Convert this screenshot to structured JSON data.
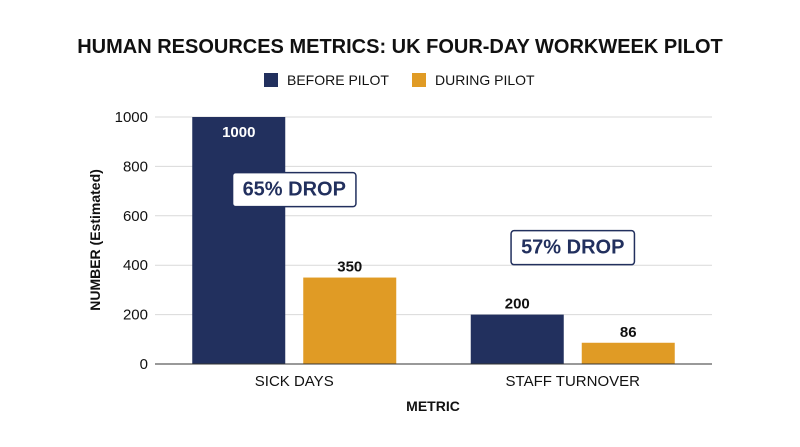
{
  "chart_data": {
    "type": "bar",
    "title": "HUMAN RESOURCES METRICS: UK FOUR-DAY WORKWEEK PILOT",
    "xlabel": "METRIC",
    "ylabel": "NUMBER (Estimated)",
    "categories": [
      "SICK DAYS",
      "STAFF TURNOVER"
    ],
    "series": [
      {
        "name": "BEFORE PILOT",
        "color": "#22305e",
        "values": [
          1000,
          200
        ]
      },
      {
        "name": "DURING PILOT",
        "color": "#e09b25",
        "values": [
          350,
          86
        ]
      }
    ],
    "ylim": [
      0,
      1000
    ],
    "yticks": [
      "0",
      "200",
      "400",
      "600",
      "800",
      "1000"
    ],
    "grid": true,
    "legend": "top-center",
    "annotations": [
      {
        "text": "65% DROP",
        "category": "SICK DAYS",
        "y": 710
      },
      {
        "text": "57% DROP",
        "category": "STAFF TURNOVER",
        "y": 475
      }
    ]
  }
}
